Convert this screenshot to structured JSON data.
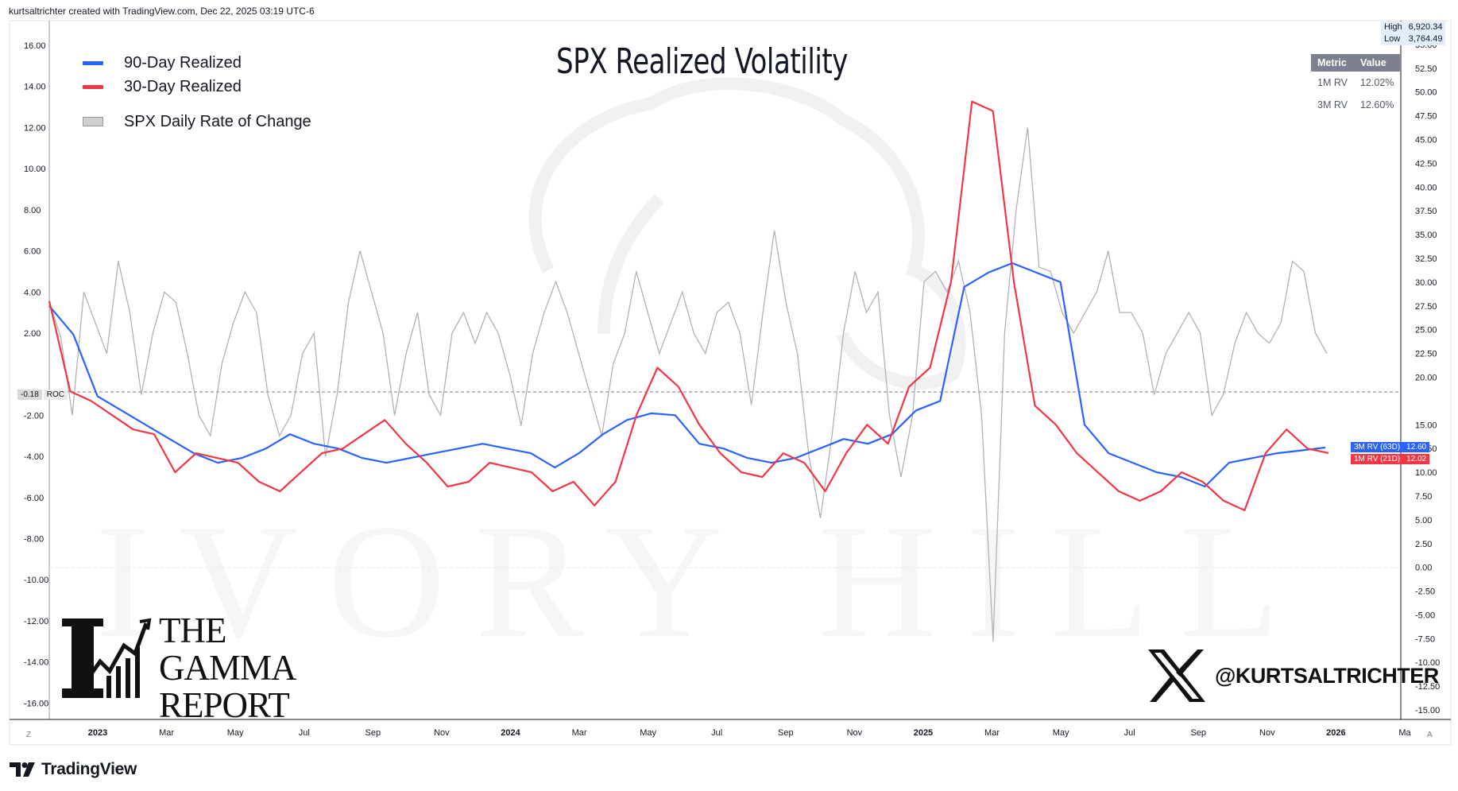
{
  "header": {
    "text": "kurtsaltrichter created with TradingView.com, Dec 22, 2025 03:19 UTC-6"
  },
  "title": "SPX Realized Volatility",
  "legend": [
    {
      "label": "90-Day Realized",
      "color": "#2962ff",
      "kind": "line"
    },
    {
      "label": "30-Day Realized",
      "color": "#f23645",
      "kind": "line"
    },
    {
      "label": "SPX Daily Rate of Change",
      "color": "#b2b2b2",
      "kind": "box"
    }
  ],
  "metrics": {
    "headers": [
      "Metric",
      "Value"
    ],
    "rows": [
      [
        "1M RV",
        "12.02%"
      ],
      [
        "3M RV",
        "12.60%"
      ]
    ]
  },
  "high_low": {
    "high_label": "High",
    "high_value": "6,920.34",
    "low_label": "Low",
    "low_value": "3,764.49"
  },
  "roc_tag": {
    "value": "-0.18",
    "name": "ROC"
  },
  "price_tags": [
    {
      "label": "3M RV (63D)",
      "value": "12.60",
      "color": "#2962ff"
    },
    {
      "label": "1M RV (21D)",
      "value": "12.02",
      "color": "#f23645"
    }
  ],
  "branding": {
    "gamma_line1": "THE",
    "gamma_line2": "GAMMA",
    "gamma_line3": "REPORT",
    "x_handle": "@KURTSALTRICHTER",
    "watermark": "IVORY HILL",
    "footer": "TradingView"
  },
  "corners": {
    "left": "Z",
    "right": "A"
  },
  "chart_data": {
    "type": "line",
    "left_axis": {
      "ticks": [
        "16.00",
        "14.00",
        "12.00",
        "10.00",
        "8.00",
        "6.00",
        "4.00",
        "2.00",
        "-2.00",
        "-4.00",
        "-6.00",
        "-8.00",
        "-10.00",
        "-12.00",
        "-14.00",
        "-16.00"
      ],
      "range": [
        -16.8,
        17.2
      ]
    },
    "right_axis": {
      "ticks": [
        "55.00",
        "52.50",
        "50.00",
        "47.50",
        "45.00",
        "42.50",
        "40.00",
        "37.50",
        "35.00",
        "32.50",
        "30.00",
        "27.50",
        "25.00",
        "22.50",
        "20.00",
        "15.00",
        "12.50",
        "10.00",
        "7.50",
        "5.00",
        "2.50",
        "0.00",
        "-2.50",
        "-5.00",
        "-7.50",
        "-10.00",
        "-12.50",
        "-15.00"
      ],
      "range": [
        -16.0,
        57.5
      ]
    },
    "x_axis": {
      "labels": [
        "2023",
        "Mar",
        "May",
        "Jul",
        "Sep",
        "Nov",
        "2024",
        "Mar",
        "May",
        "Jul",
        "Sep",
        "Nov",
        "2025",
        "Mar",
        "May",
        "Jul",
        "Sep",
        "Nov",
        "2026",
        "Ma"
      ],
      "bold": [
        "2023",
        "2024",
        "2025",
        "2026"
      ]
    },
    "series": [
      {
        "name": "90-Day Realized",
        "axis": "right",
        "color": "#2962ff",
        "points": [
          [
            0,
            27.5
          ],
          [
            1,
            24.5
          ],
          [
            2,
            18
          ],
          [
            3,
            16.5
          ],
          [
            4,
            15
          ],
          [
            5,
            13.5
          ],
          [
            6,
            12
          ],
          [
            7,
            11
          ],
          [
            8,
            11.5
          ],
          [
            9,
            12.5
          ],
          [
            10,
            14
          ],
          [
            11,
            13
          ],
          [
            12,
            12.5
          ],
          [
            13,
            11.5
          ],
          [
            14,
            11
          ],
          [
            15,
            11.5
          ],
          [
            16,
            12
          ],
          [
            17,
            12.5
          ],
          [
            18,
            13
          ],
          [
            19,
            12.5
          ],
          [
            20,
            12
          ],
          [
            21,
            10.5
          ],
          [
            22,
            12
          ],
          [
            23,
            14
          ],
          [
            24,
            15.5
          ],
          [
            25,
            16.2
          ],
          [
            26,
            16
          ],
          [
            27,
            13
          ],
          [
            28,
            12.5
          ],
          [
            29,
            11.5
          ],
          [
            30,
            11
          ],
          [
            31,
            11.5
          ],
          [
            32,
            12.5
          ],
          [
            33,
            13.5
          ],
          [
            34,
            13
          ],
          [
            35,
            14
          ],
          [
            36,
            16.5
          ],
          [
            37,
            17.5
          ],
          [
            38,
            29.5
          ],
          [
            39,
            31
          ],
          [
            40,
            32
          ],
          [
            41,
            31
          ],
          [
            42,
            30
          ],
          [
            43,
            15
          ],
          [
            44,
            12
          ],
          [
            45,
            11
          ],
          [
            46,
            10
          ],
          [
            47,
            9.5
          ],
          [
            48,
            8.5
          ],
          [
            49,
            11
          ],
          [
            50,
            11.5
          ],
          [
            51,
            12
          ],
          [
            52,
            12.3
          ],
          [
            53,
            12.6
          ]
        ]
      },
      {
        "name": "30-Day Realized",
        "axis": "right",
        "color": "#f23645",
        "points": [
          [
            0,
            28
          ],
          [
            1,
            18.5
          ],
          [
            2,
            17.5
          ],
          [
            3,
            16
          ],
          [
            4,
            14.5
          ],
          [
            5,
            14
          ],
          [
            6,
            10
          ],
          [
            7,
            12
          ],
          [
            8,
            11.5
          ],
          [
            9,
            11
          ],
          [
            10,
            9
          ],
          [
            11,
            8
          ],
          [
            12,
            10
          ],
          [
            13,
            12
          ],
          [
            14,
            12.5
          ],
          [
            15,
            14
          ],
          [
            16,
            15.5
          ],
          [
            17,
            13
          ],
          [
            18,
            11
          ],
          [
            19,
            8.5
          ],
          [
            20,
            9
          ],
          [
            21,
            11
          ],
          [
            22,
            10.5
          ],
          [
            23,
            10
          ],
          [
            24,
            8
          ],
          [
            25,
            9
          ],
          [
            26,
            6.5
          ],
          [
            27,
            9
          ],
          [
            28,
            16
          ],
          [
            29,
            21
          ],
          [
            30,
            19
          ],
          [
            31,
            15
          ],
          [
            32,
            12
          ],
          [
            33,
            10
          ],
          [
            34,
            9.5
          ],
          [
            35,
            12
          ],
          [
            36,
            11
          ],
          [
            37,
            8
          ],
          [
            38,
            12
          ],
          [
            39,
            15
          ],
          [
            40,
            13
          ],
          [
            41,
            19
          ],
          [
            42,
            21
          ],
          [
            43,
            30
          ],
          [
            44,
            49
          ],
          [
            45,
            48
          ],
          [
            46,
            30
          ],
          [
            47,
            17
          ],
          [
            48,
            15
          ],
          [
            49,
            12
          ],
          [
            50,
            10
          ],
          [
            51,
            8
          ],
          [
            52,
            7
          ],
          [
            53,
            8
          ],
          [
            54,
            10
          ],
          [
            55,
            9
          ],
          [
            56,
            7
          ],
          [
            57,
            6
          ],
          [
            58,
            12
          ],
          [
            59,
            14.5
          ],
          [
            60,
            12.5
          ],
          [
            61,
            12.02
          ]
        ]
      }
    ],
    "bars": {
      "name": "SPX Daily Rate of Change",
      "axis": "left",
      "color": "#b2b2b2",
      "values": [
        3.5,
        1.8,
        -2,
        4,
        2.5,
        1,
        5.5,
        3,
        -1,
        2,
        4,
        3.5,
        1,
        -2,
        -3,
        0.5,
        2.5,
        4,
        3,
        -1,
        -3,
        -2,
        1,
        2,
        -4,
        -1,
        3.5,
        6,
        4,
        2,
        -2,
        1,
        3,
        -1,
        -2,
        2,
        3,
        1.5,
        3,
        2,
        0,
        -2.5,
        1,
        3,
        4.5,
        3,
        1,
        -1,
        -3,
        0.5,
        2,
        5,
        3,
        1,
        2.5,
        4,
        2,
        1,
        3,
        3.5,
        2,
        -1.5,
        3,
        7,
        3.5,
        1,
        -4,
        -7,
        -3,
        2,
        5,
        3,
        4,
        -2,
        -5,
        -2,
        4.5,
        5,
        4,
        5.5,
        3,
        -2,
        -13,
        2,
        8,
        12,
        5.2,
        5,
        3,
        2,
        3,
        4,
        6,
        3,
        3,
        2,
        -1,
        1,
        2,
        3,
        2,
        -2,
        -1,
        1.5,
        3,
        2,
        1.5,
        2.5,
        5.5,
        5,
        2,
        1
      ]
    }
  }
}
